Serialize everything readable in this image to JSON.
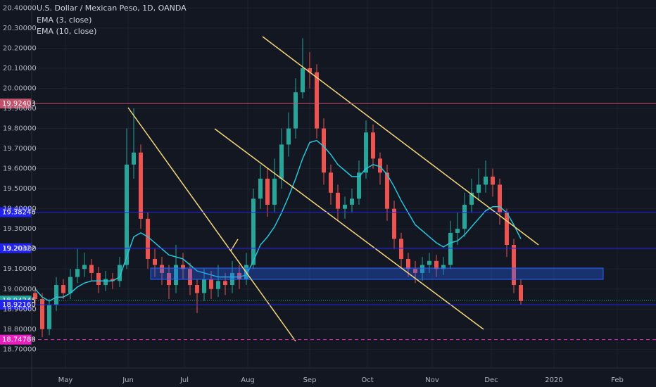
{
  "chart_data": {
    "type": "candlestick",
    "title": "U.S. Dollar / Mexican Peso, 1D, OANDA",
    "indicators": [
      "EMA (3, close)",
      "EMA (10, close)"
    ],
    "up_color": "#26a69a",
    "down_color": "#ef5350",
    "candles": [
      [
        18.98,
        19.01,
        18.92,
        18.95
      ],
      [
        18.95,
        18.98,
        18.76,
        18.8
      ],
      [
        18.8,
        18.95,
        18.77,
        18.92
      ],
      [
        18.92,
        19.06,
        18.89,
        19.02
      ],
      [
        19.02,
        19.05,
        18.95,
        18.98
      ],
      [
        18.98,
        19.1,
        18.95,
        19.06
      ],
      [
        19.06,
        19.2,
        19.03,
        19.1
      ],
      [
        19.1,
        19.18,
        19.06,
        19.12
      ],
      [
        19.12,
        19.15,
        19.04,
        19.08
      ],
      [
        19.08,
        19.11,
        18.98,
        19.02
      ],
      [
        19.02,
        19.09,
        18.99,
        19.05
      ],
      [
        19.05,
        19.08,
        19.0,
        19.04
      ],
      [
        19.04,
        19.16,
        19.01,
        19.12
      ],
      [
        19.12,
        19.8,
        19.1,
        19.62
      ],
      [
        19.62,
        19.9,
        19.55,
        19.68
      ],
      [
        19.68,
        19.72,
        19.3,
        19.35
      ],
      [
        19.35,
        19.38,
        19.1,
        19.15
      ],
      [
        19.15,
        19.2,
        19.06,
        19.12
      ],
      [
        19.12,
        19.16,
        19.02,
        19.08
      ],
      [
        19.08,
        19.12,
        18.95,
        19.02
      ],
      [
        19.02,
        19.22,
        18.98,
        19.12
      ],
      [
        19.12,
        19.18,
        19.05,
        19.1
      ],
      [
        19.1,
        19.13,
        18.97,
        19.02
      ],
      [
        19.02,
        19.05,
        18.88,
        18.98
      ],
      [
        18.98,
        19.1,
        18.94,
        19.05
      ],
      [
        19.05,
        19.09,
        18.95,
        19.0
      ],
      [
        19.0,
        19.12,
        18.96,
        19.04
      ],
      [
        19.04,
        19.08,
        18.97,
        19.02
      ],
      [
        19.02,
        19.14,
        18.98,
        19.08
      ],
      [
        19.08,
        19.12,
        19.0,
        19.05
      ],
      [
        19.05,
        19.18,
        19.02,
        19.12
      ],
      [
        19.12,
        19.5,
        19.1,
        19.45
      ],
      [
        19.45,
        19.62,
        19.4,
        19.55
      ],
      [
        19.55,
        19.6,
        19.36,
        19.42
      ],
      [
        19.42,
        19.65,
        19.38,
        19.55
      ],
      [
        19.55,
        19.8,
        19.5,
        19.72
      ],
      [
        19.72,
        19.88,
        19.66,
        19.8
      ],
      [
        19.8,
        20.05,
        19.75,
        19.98
      ],
      [
        19.98,
        20.25,
        19.95,
        20.1
      ],
      [
        20.1,
        20.18,
        20.0,
        20.08
      ],
      [
        20.08,
        20.12,
        19.75,
        19.8
      ],
      [
        19.8,
        19.85,
        19.52,
        19.58
      ],
      [
        19.58,
        19.62,
        19.42,
        19.48
      ],
      [
        19.48,
        19.52,
        19.34,
        19.4
      ],
      [
        19.4,
        19.46,
        19.35,
        19.42
      ],
      [
        19.42,
        19.5,
        19.38,
        19.45
      ],
      [
        19.45,
        19.64,
        19.42,
        19.58
      ],
      [
        19.58,
        19.84,
        19.55,
        19.78
      ],
      [
        19.78,
        19.82,
        19.6,
        19.65
      ],
      [
        19.65,
        19.68,
        19.52,
        19.58
      ],
      [
        19.58,
        19.62,
        19.34,
        19.4
      ],
      [
        19.4,
        19.44,
        19.2,
        19.25
      ],
      [
        19.25,
        19.28,
        19.1,
        19.15
      ],
      [
        19.15,
        19.18,
        19.06,
        19.1
      ],
      [
        19.1,
        19.14,
        19.03,
        19.08
      ],
      [
        19.08,
        19.16,
        19.04,
        19.12
      ],
      [
        19.12,
        19.18,
        19.08,
        19.14
      ],
      [
        19.14,
        19.17,
        19.06,
        19.1
      ],
      [
        19.1,
        19.16,
        19.07,
        19.12
      ],
      [
        19.12,
        19.34,
        19.1,
        19.28
      ],
      [
        19.28,
        19.38,
        19.22,
        19.3
      ],
      [
        19.3,
        19.48,
        19.26,
        19.42
      ],
      [
        19.42,
        19.55,
        19.38,
        19.48
      ],
      [
        19.48,
        19.6,
        19.44,
        19.52
      ],
      [
        19.52,
        19.64,
        19.48,
        19.56
      ],
      [
        19.56,
        19.6,
        19.46,
        19.52
      ],
      [
        19.52,
        19.55,
        19.32,
        19.38
      ],
      [
        19.38,
        19.4,
        19.16,
        19.22
      ],
      [
        19.22,
        19.25,
        18.98,
        19.02
      ],
      [
        19.02,
        19.05,
        18.92,
        18.94
      ]
    ],
    "ema10": {
      "color": "#26c6da",
      "values": [
        19.0,
        18.96,
        18.94,
        18.96,
        18.96,
        18.98,
        19.01,
        19.03,
        19.04,
        19.04,
        19.04,
        19.04,
        19.06,
        19.16,
        19.26,
        19.28,
        19.26,
        19.23,
        19.2,
        19.17,
        19.16,
        19.15,
        19.12,
        19.09,
        19.08,
        19.07,
        19.06,
        19.06,
        19.06,
        19.06,
        19.07,
        19.14,
        19.22,
        19.26,
        19.31,
        19.38,
        19.46,
        19.55,
        19.65,
        19.73,
        19.74,
        19.71,
        19.67,
        19.62,
        19.59,
        19.56,
        19.56,
        19.6,
        19.62,
        19.61,
        19.57,
        19.51,
        19.44,
        19.38,
        19.32,
        19.29,
        19.26,
        19.23,
        19.21,
        19.23,
        19.24,
        19.27,
        19.31,
        19.35,
        19.39,
        19.41,
        19.41,
        19.38,
        19.32,
        19.25
      ]
    },
    "levels": [
      {
        "value": 19.92403,
        "label": "19.92403",
        "color": "#c2506a",
        "style": "solid"
      },
      {
        "value": 19.38246,
        "label": "19.38246",
        "color": "#2222ee",
        "style": "solid"
      },
      {
        "value": 19.20322,
        "label": "19.20322",
        "color": "#2222ee",
        "style": "solid"
      },
      {
        "value": 18.94245,
        "label": "18.94245",
        "color": "#26a69a",
        "style": "dotted"
      },
      {
        "value": 18.9216,
        "label": "18.92160",
        "color": "#2222ee",
        "style": "solid"
      },
      {
        "value": 18.74788,
        "label": "18.74788",
        "color": "#e91ec0",
        "style": "dashed"
      }
    ],
    "ylim": [
      18.61,
      20.44
    ],
    "yticks": [
      {
        "value": 18.7,
        "label": "18.70000"
      },
      {
        "value": 18.8,
        "label": "18.80000"
      },
      {
        "value": 18.9,
        "label": "18.90000"
      },
      {
        "value": 19.0,
        "label": "19.00000"
      },
      {
        "value": 19.1,
        "label": "19.10000"
      },
      {
        "value": 19.2,
        "label": "19.20000"
      },
      {
        "value": 19.3,
        "label": "19.30000"
      },
      {
        "value": 19.4,
        "label": "19.40000"
      },
      {
        "value": 19.5,
        "label": "19.50000"
      },
      {
        "value": 19.6,
        "label": "19.60000"
      },
      {
        "value": 19.7,
        "label": "19.70000"
      },
      {
        "value": 19.8,
        "label": "19.80000"
      },
      {
        "value": 19.9,
        "label": "19.90000"
      },
      {
        "value": 20.0,
        "label": "20.00000"
      },
      {
        "value": 20.1,
        "label": "20.10000"
      },
      {
        "value": 20.2,
        "label": "20.20000"
      },
      {
        "value": 20.3,
        "label": "20.30000"
      },
      {
        "value": 20.4,
        "label": "20.40000"
      }
    ],
    "xlim": [
      -5,
      88.2
    ],
    "xticks": [
      {
        "value": 4.3,
        "label": "May"
      },
      {
        "value": 13.2,
        "label": "Jun"
      },
      {
        "value": 21.2,
        "label": "Jul"
      },
      {
        "value": 30.2,
        "label": "Aug"
      },
      {
        "value": 39,
        "label": "Sep"
      },
      {
        "value": 47.2,
        "label": "Oct"
      },
      {
        "value": 56.4,
        "label": "Nov"
      },
      {
        "value": 64.8,
        "label": "Dec"
      },
      {
        "value": 73.7,
        "label": "2020"
      },
      {
        "value": 82.7,
        "label": "Feb"
      }
    ],
    "grid": true
  }
}
